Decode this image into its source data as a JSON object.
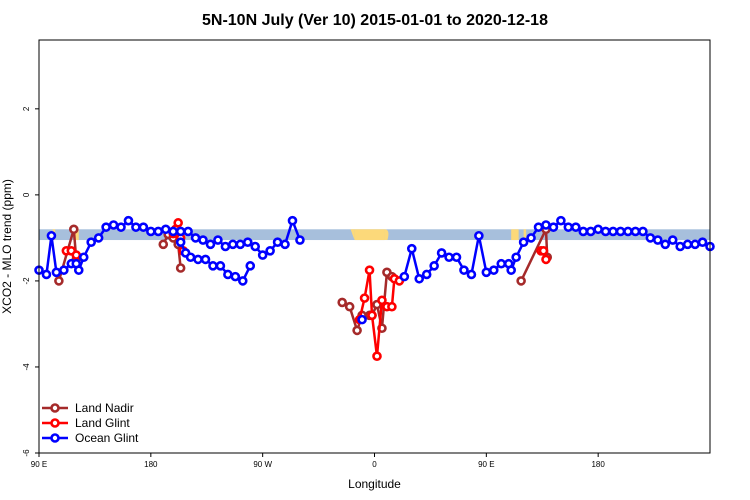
{
  "chart_data": {
    "type": "line",
    "title": "5N-10N July (Ver 10)   2015-01-01 to 2020-12-18",
    "xlabel": "Longitude",
    "ylabel": "XCO2 - MLO trend (ppm)",
    "xlim": [
      -90,
      180
    ],
    "ylim": [
      -6,
      3.6
    ],
    "x_ticks": [
      {
        "value": -90,
        "label": "90 E"
      },
      {
        "value": -45,
        "label": "180"
      },
      {
        "value": 0,
        "label": "90 W"
      },
      {
        "value": 45,
        "label": "0"
      },
      {
        "value": 90,
        "label": "90 E"
      },
      {
        "value": 135,
        "label": "180"
      }
    ],
    "y_ticks": [
      -6,
      -4,
      -2,
      0,
      2
    ],
    "land_mask": {
      "y_range": [
        -1.05,
        -0.8
      ],
      "ocean_color": "#a7bfdc",
      "land_color": "#fcd97a",
      "land_spans": [
        [
          -84.5,
          -83.5
        ],
        [
          -75.5,
          -74
        ],
        [
          37,
          49
        ],
        [
          100,
          103
        ],
        [
          105,
          106
        ]
      ]
    },
    "series": [
      {
        "name": "Land Nadir",
        "color": "#a52a2a",
        "segments": [
          [
            [
              -82,
              -2.0
            ],
            [
              -76,
              -0.8
            ],
            [
              -75,
              -1.5
            ]
          ],
          [
            [
              -40,
              -1.15
            ],
            [
              -38,
              -0.92
            ],
            [
              -36,
              -1.0
            ],
            [
              -34,
              -1.15
            ],
            [
              -33,
              -1.7
            ]
          ],
          [
            [
              32,
              -2.5
            ],
            [
              35,
              -2.6
            ],
            [
              38,
              -3.15
            ],
            [
              40,
              -2.8
            ],
            [
              43,
              -2.8
            ],
            [
              44,
              -2.8
            ],
            [
              46,
              -2.55
            ],
            [
              48,
              -3.1
            ],
            [
              50,
              -1.8
            ],
            [
              52,
              -1.9
            ]
          ],
          [
            [
              104,
              -2.0
            ],
            [
              114,
              -0.8
            ],
            [
              114.5,
              -1.45
            ]
          ]
        ]
      },
      {
        "name": "Land Glint",
        "color": "#ff0000",
        "segments": [
          [
            [
              -79,
              -1.3
            ],
            [
              -77,
              -1.3
            ],
            [
              -75,
              -1.4
            ]
          ],
          [
            [
              -36,
              -0.9
            ],
            [
              -35,
              -0.8
            ],
            [
              -34,
              -0.65
            ],
            [
              -33,
              -1.0
            ],
            [
              -32,
              -1.3
            ]
          ],
          [
            [
              39,
              -2.9
            ],
            [
              41,
              -2.4
            ],
            [
              43,
              -1.75
            ],
            [
              44,
              -2.8
            ],
            [
              46,
              -3.75
            ],
            [
              48,
              -2.45
            ],
            [
              50,
              -2.6
            ],
            [
              52,
              -2.6
            ],
            [
              53,
              -1.95
            ],
            [
              55,
              -2.0
            ]
          ],
          [
            [
              112,
              -1.3
            ],
            [
              113,
              -1.3
            ],
            [
              114,
              -1.5
            ]
          ]
        ]
      },
      {
        "name": "Ocean Glint",
        "color": "#0000ff",
        "segments": [
          [
            [
              -90,
              -1.75
            ],
            [
              -87,
              -1.85
            ],
            [
              -85,
              -0.95
            ],
            [
              -83,
              -1.8
            ],
            [
              -80,
              -1.75
            ],
            [
              -77,
              -1.6
            ],
            [
              -75,
              -1.6
            ],
            [
              -74,
              -1.75
            ],
            [
              -72,
              -1.45
            ],
            [
              -69,
              -1.1
            ],
            [
              -66,
              -1.0
            ],
            [
              -63,
              -0.75
            ],
            [
              -60,
              -0.7
            ],
            [
              -57,
              -0.75
            ],
            [
              -54,
              -0.6
            ],
            [
              -51,
              -0.75
            ],
            [
              -48,
              -0.75
            ],
            [
              -45,
              -0.85
            ],
            [
              -42,
              -0.85
            ],
            [
              -39,
              -0.8
            ],
            [
              -36,
              -0.85
            ],
            [
              -33,
              -0.85
            ],
            [
              -30,
              -0.85
            ],
            [
              -27,
              -1.0
            ],
            [
              -24,
              -1.05
            ],
            [
              -21,
              -1.15
            ],
            [
              -18,
              -1.05
            ],
            [
              -15,
              -1.2
            ],
            [
              -12,
              -1.15
            ],
            [
              -9,
              -1.15
            ],
            [
              -6,
              -1.1
            ],
            [
              -3,
              -1.2
            ],
            [
              0,
              -1.4
            ],
            [
              3,
              -1.3
            ],
            [
              6,
              -1.1
            ],
            [
              9,
              -1.15
            ],
            [
              12,
              -0.6
            ],
            [
              15,
              -1.05
            ]
          ],
          [
            [
              -33,
              -1.1
            ],
            [
              -31,
              -1.35
            ],
            [
              -29,
              -1.45
            ],
            [
              -26,
              -1.5
            ],
            [
              -23,
              -1.5
            ],
            [
              -20,
              -1.65
            ],
            [
              -17,
              -1.65
            ],
            [
              -14,
              -1.85
            ],
            [
              -11,
              -1.9
            ],
            [
              -8,
              -2.0
            ],
            [
              -5,
              -1.65
            ]
          ],
          [
            [
              40,
              -2.9
            ]
          ],
          [
            [
              57,
              -1.9
            ],
            [
              60,
              -1.25
            ],
            [
              63,
              -1.95
            ],
            [
              66,
              -1.85
            ],
            [
              69,
              -1.65
            ],
            [
              72,
              -1.35
            ],
            [
              75,
              -1.45
            ],
            [
              78,
              -1.45
            ],
            [
              81,
              -1.75
            ],
            [
              84,
              -1.85
            ],
            [
              87,
              -0.95
            ],
            [
              90,
              -1.8
            ],
            [
              93,
              -1.75
            ],
            [
              96,
              -1.6
            ],
            [
              99,
              -1.6
            ],
            [
              100,
              -1.75
            ],
            [
              102,
              -1.45
            ],
            [
              105,
              -1.1
            ],
            [
              108,
              -1.0
            ],
            [
              111,
              -0.75
            ],
            [
              114,
              -0.7
            ],
            [
              117,
              -0.75
            ],
            [
              120,
              -0.6
            ],
            [
              123,
              -0.75
            ],
            [
              126,
              -0.75
            ],
            [
              129,
              -0.85
            ],
            [
              132,
              -0.85
            ],
            [
              135,
              -0.8
            ],
            [
              138,
              -0.85
            ],
            [
              141,
              -0.85
            ],
            [
              144,
              -0.85
            ],
            [
              147,
              -0.85
            ],
            [
              150,
              -0.85
            ],
            [
              153,
              -0.85
            ],
            [
              156,
              -1.0
            ],
            [
              159,
              -1.05
            ],
            [
              162,
              -1.15
            ],
            [
              165,
              -1.05
            ],
            [
              168,
              -1.2
            ],
            [
              171,
              -1.15
            ],
            [
              174,
              -1.15
            ],
            [
              177,
              -1.1
            ],
            [
              180,
              -1.2
            ]
          ]
        ]
      }
    ],
    "legend": {
      "position": "bottom-left",
      "entries": [
        "Land Nadir",
        "Land Glint",
        "Ocean Glint"
      ]
    },
    "grid": false
  }
}
